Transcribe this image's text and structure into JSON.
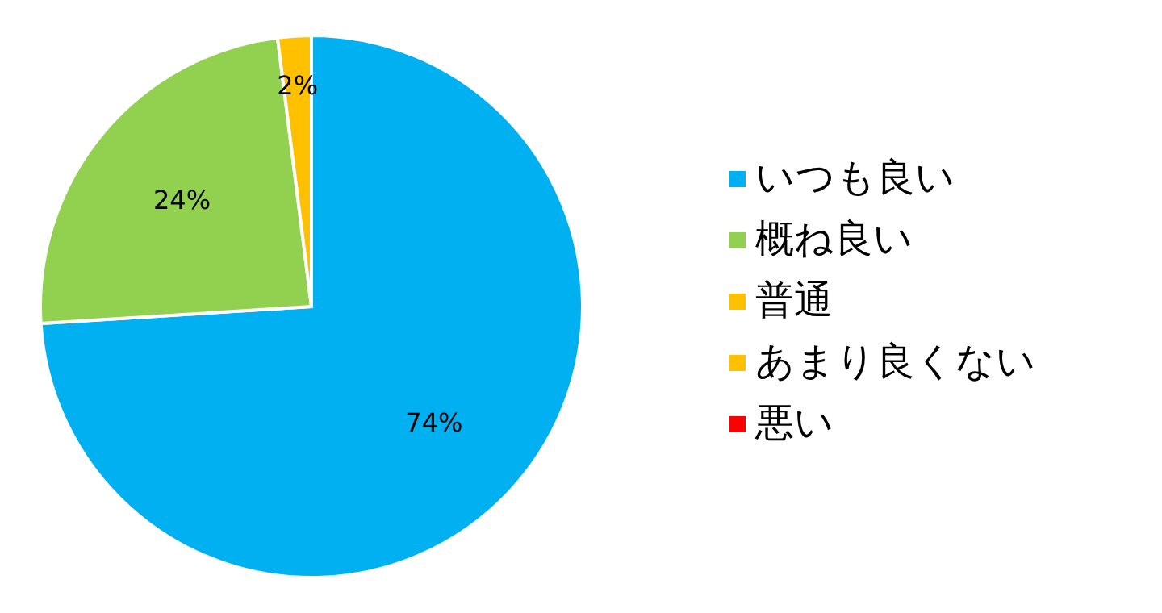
{
  "chart_data": {
    "type": "pie",
    "categories": [
      "いつも良い",
      "概ね良い",
      "普通",
      "あまり良くない",
      "悪い"
    ],
    "values": [
      74,
      24,
      2,
      0,
      0
    ],
    "colors": [
      "#00b0f0",
      "#92d050",
      "#ffc000",
      "#ffc000",
      "#ff0000"
    ],
    "value_labels": [
      "74%",
      "24%",
      "2%",
      null,
      null
    ],
    "legend": "right"
  }
}
